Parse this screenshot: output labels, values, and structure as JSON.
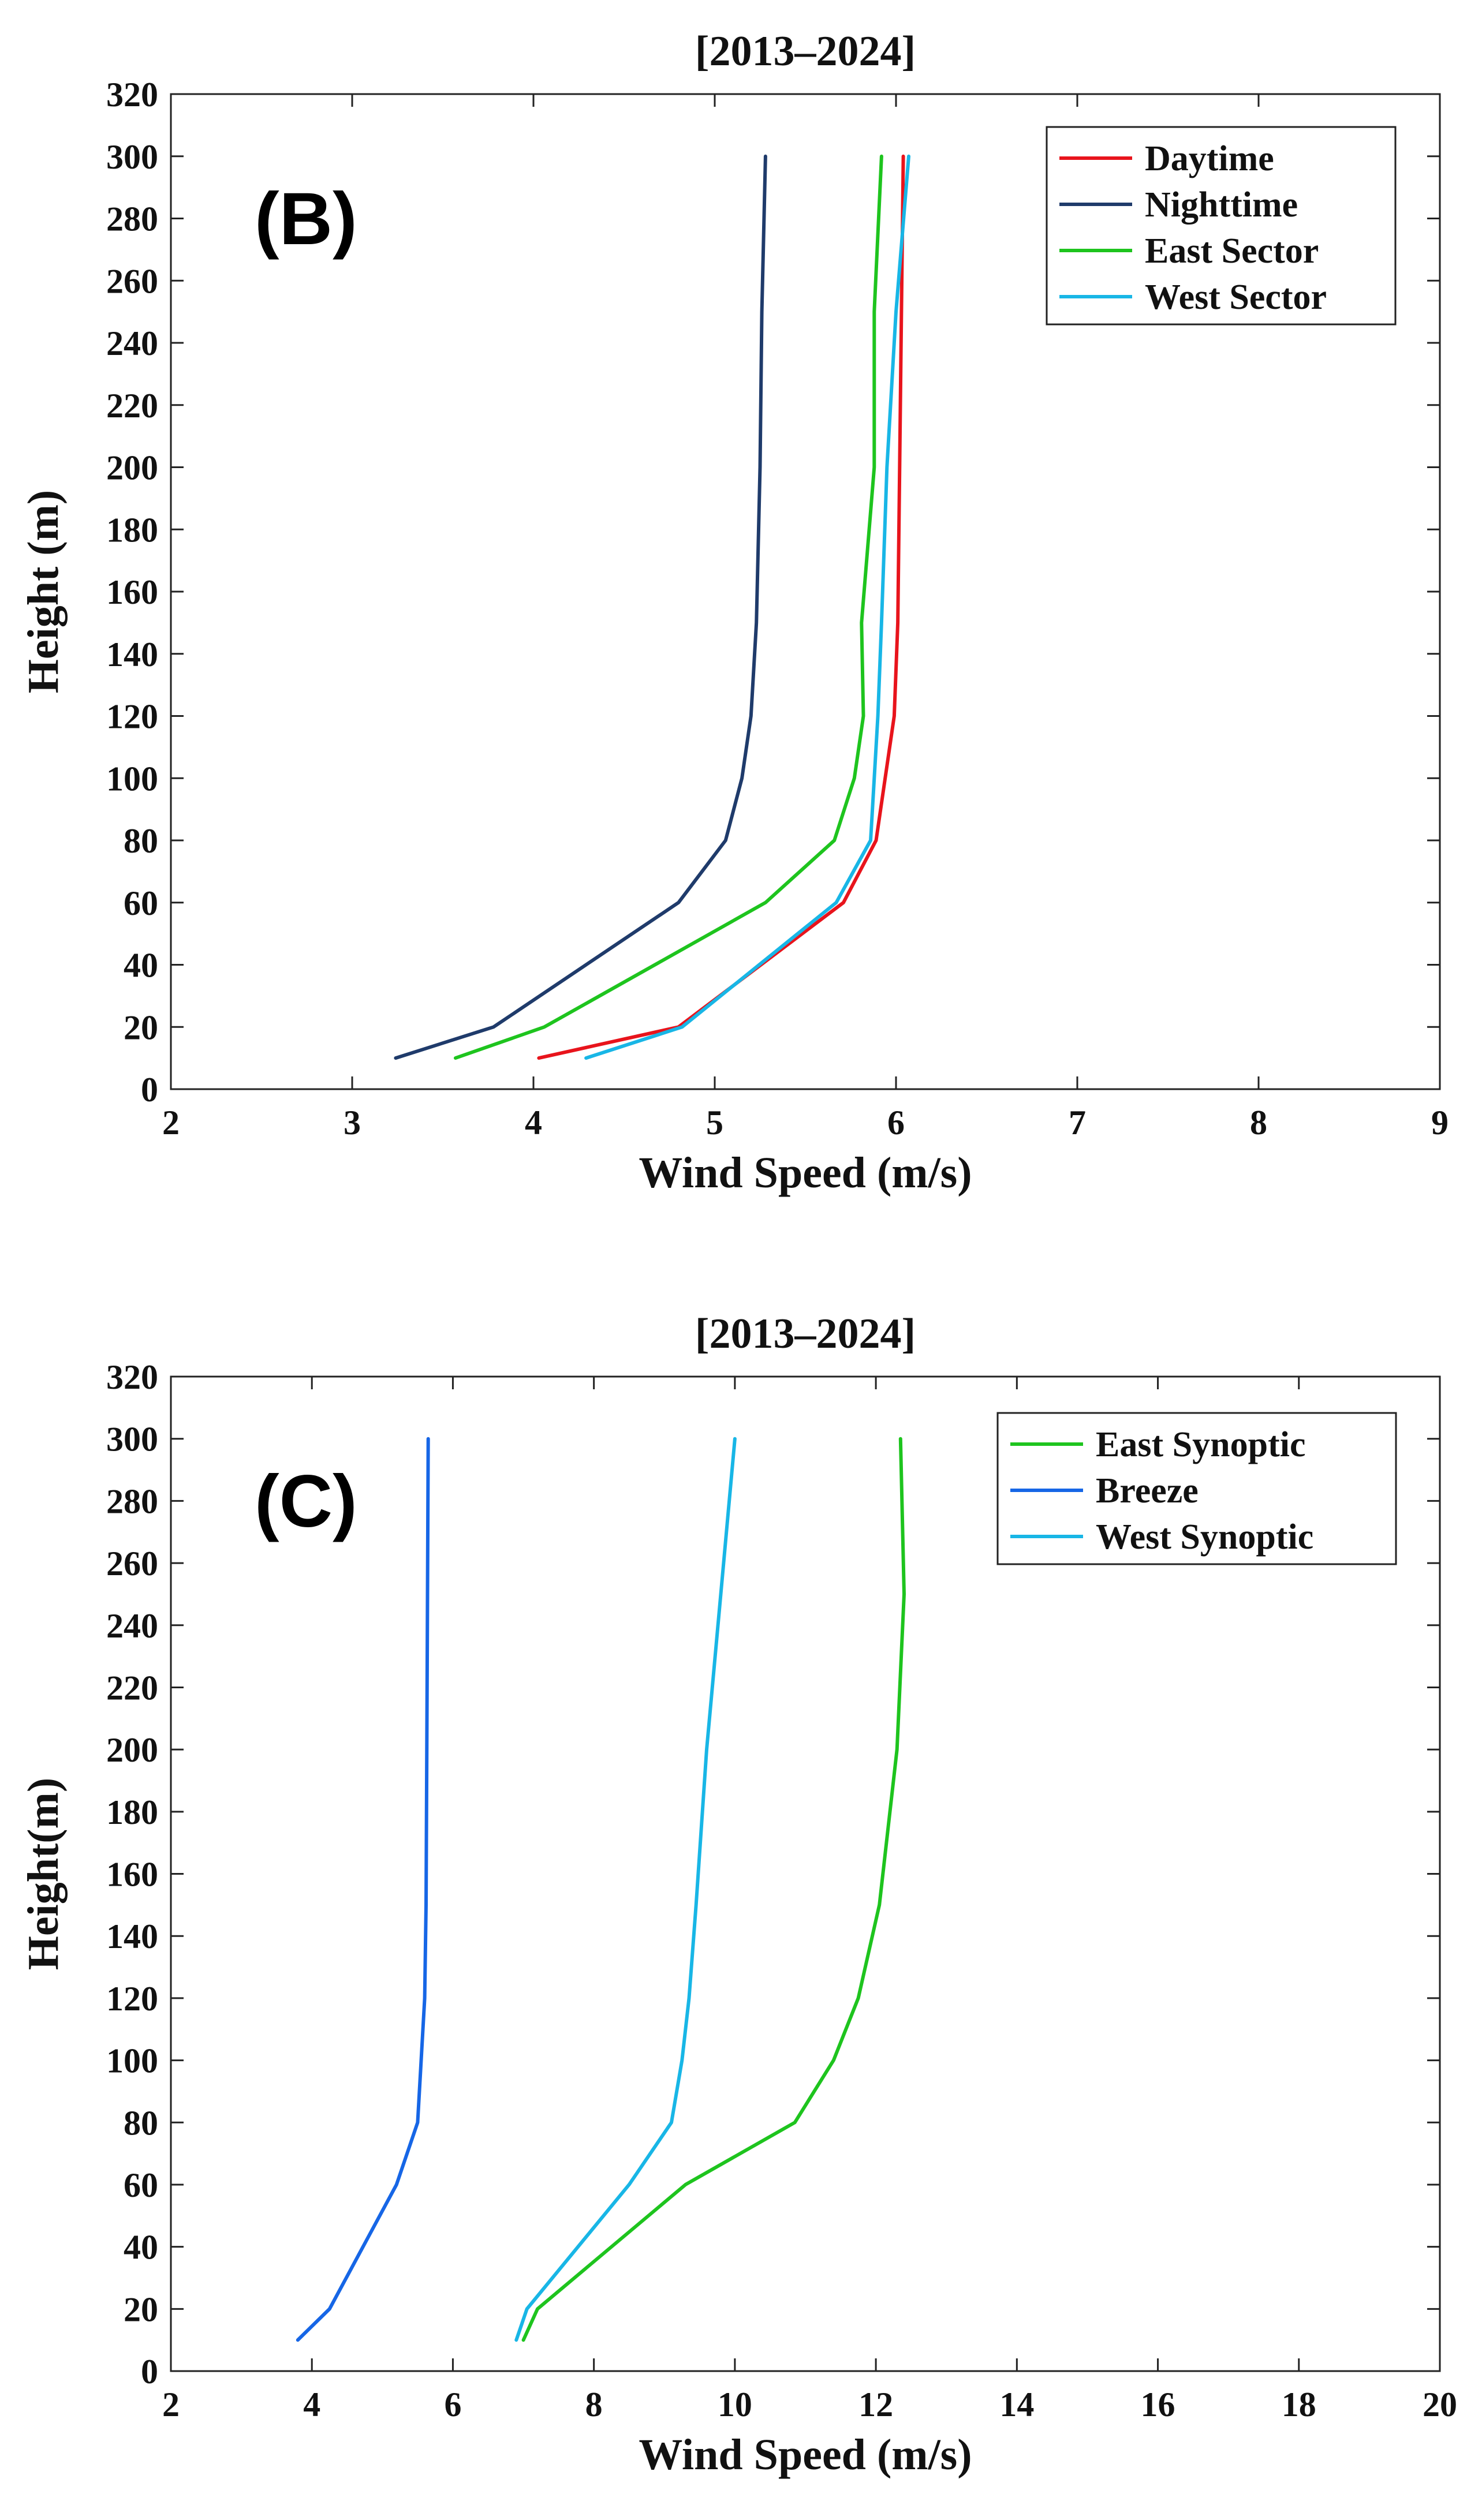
{
  "chart_data": [
    {
      "type": "line",
      "panel_label": "(B)",
      "title": "[2013–2024]",
      "xlabel": "Wind Speed (m/s)",
      "ylabel": "Height (m)",
      "xlim": [
        2,
        9
      ],
      "ylim": [
        0,
        320
      ],
      "xticks": [
        2,
        3,
        4,
        5,
        6,
        7,
        8,
        9
      ],
      "yticks": [
        0,
        20,
        40,
        60,
        80,
        100,
        120,
        140,
        160,
        180,
        200,
        220,
        240,
        260,
        280,
        300,
        320
      ],
      "legend_position": "top-right",
      "heights": [
        10,
        20,
        60,
        80,
        100,
        120,
        150,
        200,
        250,
        300
      ],
      "series": [
        {
          "name": "Daytime",
          "color": "#e8141c",
          "values": [
            4.03,
            4.8,
            5.71,
            5.89,
            5.94,
            5.99,
            6.01,
            6.02,
            6.03,
            6.04
          ]
        },
        {
          "name": "Nighttime",
          "color": "#1f3b6b",
          "values": [
            3.24,
            3.78,
            4.8,
            5.06,
            5.15,
            5.2,
            5.23,
            5.25,
            5.26,
            5.28
          ]
        },
        {
          "name": "East Sector",
          "color": "#1ec41e",
          "values": [
            3.57,
            4.06,
            5.28,
            5.66,
            5.77,
            5.82,
            5.81,
            5.88,
            5.88,
            5.92
          ]
        },
        {
          "name": "West Sector",
          "color": "#18b6e6",
          "values": [
            4.29,
            4.82,
            5.67,
            5.86,
            5.88,
            5.9,
            5.92,
            5.95,
            6.0,
            6.07
          ]
        }
      ]
    },
    {
      "type": "line",
      "panel_label": "(C)",
      "title": "[2013–2024]",
      "xlabel": "Wind Speed (m/s)",
      "ylabel": "Height(m)",
      "xlim": [
        2,
        20
      ],
      "ylim": [
        0,
        320
      ],
      "xticks": [
        2,
        4,
        6,
        8,
        10,
        12,
        14,
        16,
        18,
        20
      ],
      "yticks": [
        0,
        20,
        40,
        60,
        80,
        100,
        120,
        140,
        160,
        180,
        200,
        220,
        240,
        260,
        280,
        300,
        320
      ],
      "legend_position": "top-right",
      "heights": [
        10,
        20,
        60,
        80,
        100,
        120,
        150,
        200,
        250,
        300
      ],
      "series": [
        {
          "name": "East Synoptic",
          "color": "#1ec41e",
          "values": [
            7.0,
            7.2,
            9.3,
            10.85,
            11.4,
            11.75,
            12.05,
            12.3,
            12.4,
            12.35
          ]
        },
        {
          "name": "Breeze",
          "color": "#1666e6",
          "values": [
            3.8,
            4.25,
            5.2,
            5.5,
            5.55,
            5.6,
            5.62,
            5.63,
            5.64,
            5.65
          ]
        },
        {
          "name": "West Synoptic",
          "color": "#18b6e6",
          "values": [
            6.9,
            7.05,
            8.5,
            9.1,
            9.25,
            9.35,
            9.45,
            9.6,
            9.8,
            10.0
          ]
        }
      ]
    }
  ]
}
